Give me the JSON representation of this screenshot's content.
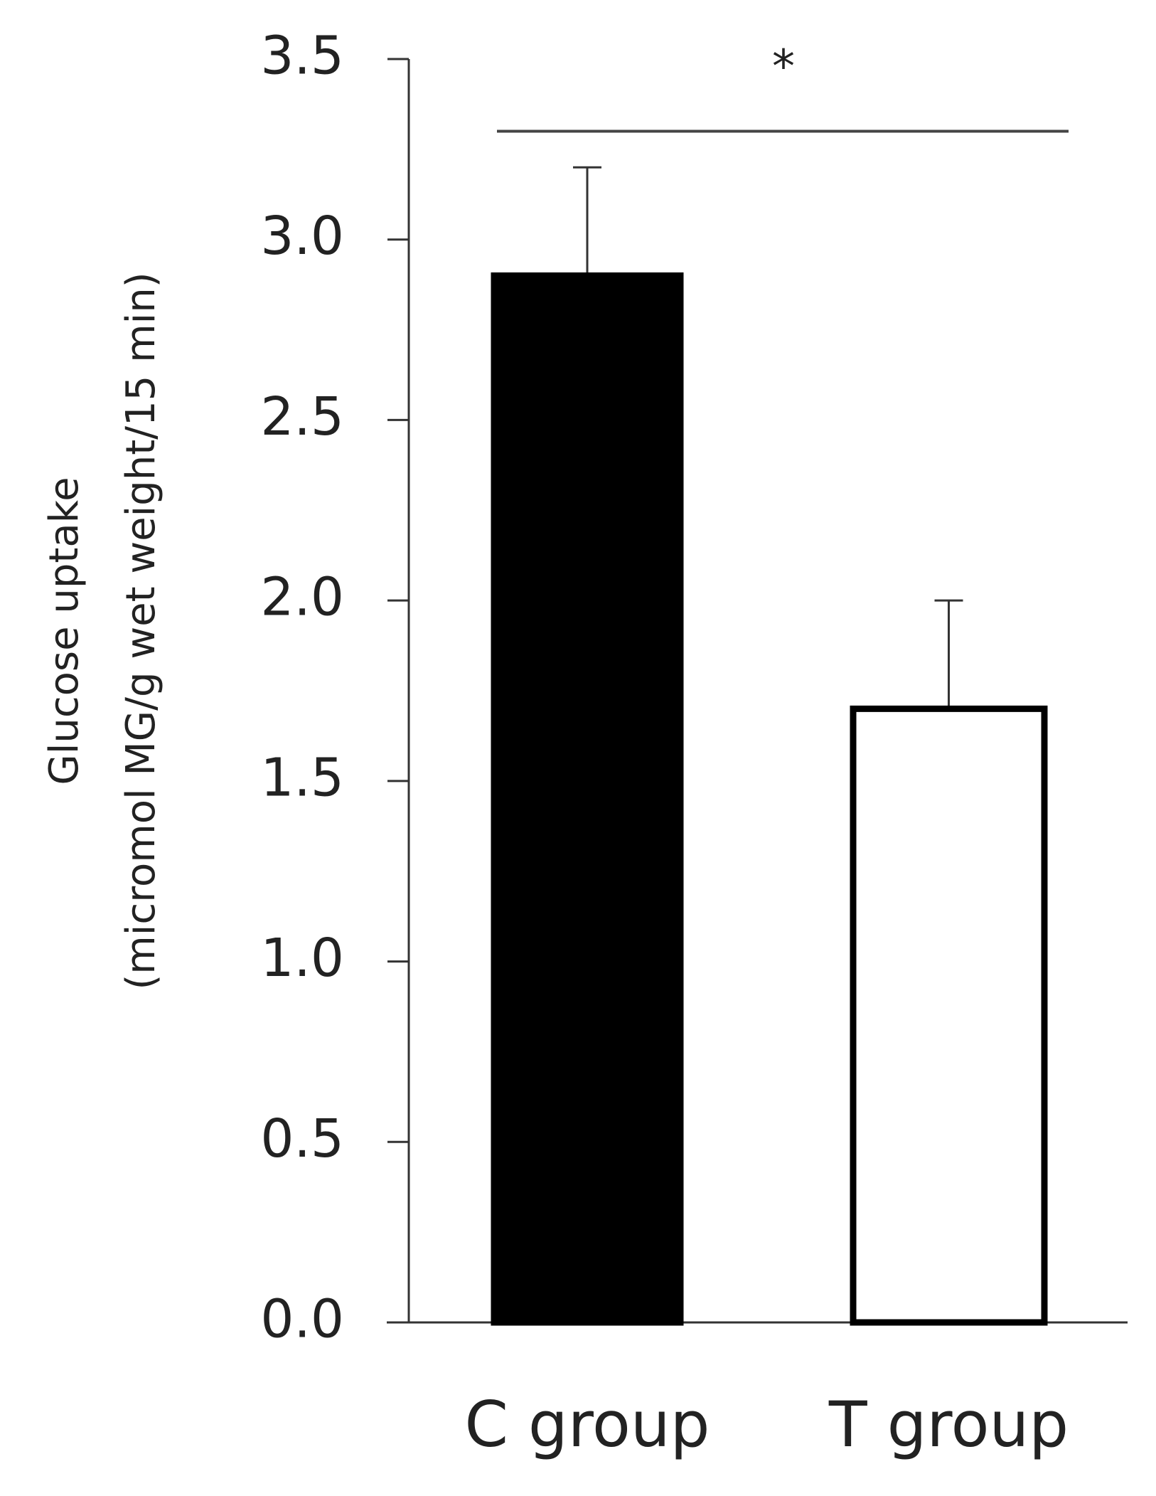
{
  "chart_data": {
    "type": "bar",
    "ylabel": [
      "Glucose uptake",
      "(micromol MG/g wet weight/15 min)"
    ],
    "categories": [
      "C group",
      "T group"
    ],
    "values": [
      2.9,
      1.7
    ],
    "errors": [
      0.3,
      0.3
    ],
    "colors": [
      "#000000",
      "#ffffff"
    ],
    "ylim": [
      0,
      3.5
    ],
    "yticks": [
      {
        "value": 0,
        "label": "0.0"
      },
      0.5,
      {
        "value": 1,
        "label": "1.0"
      },
      1.5,
      {
        "value": 2,
        "label": "2.0"
      },
      2.5,
      {
        "value": 3,
        "label": "3.0"
      },
      3.5
    ],
    "significance": {
      "label": "*",
      "y": 3.3
    }
  }
}
